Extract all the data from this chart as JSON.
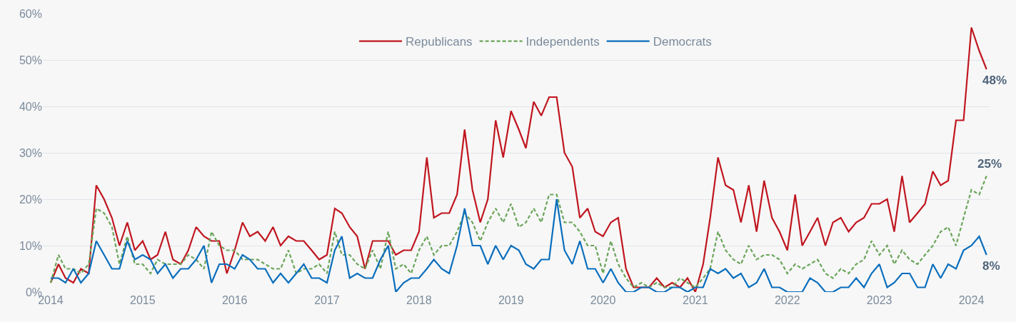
{
  "chart_data": {
    "type": "line",
    "x": [
      "2014-01",
      "2014-02",
      "2014-03",
      "2014-04",
      "2014-05",
      "2014-06",
      "2014-07",
      "2014-08",
      "2014-09",
      "2014-10",
      "2014-11",
      "2014-12",
      "2015-01",
      "2015-02",
      "2015-03",
      "2015-04",
      "2015-05",
      "2015-06",
      "2015-07",
      "2015-08",
      "2015-09",
      "2015-10",
      "2015-11",
      "2015-12",
      "2016-01",
      "2016-02",
      "2016-03",
      "2016-04",
      "2016-05",
      "2016-06",
      "2016-07",
      "2016-08",
      "2016-09",
      "2016-10",
      "2016-11",
      "2016-12",
      "2017-01",
      "2017-02",
      "2017-03",
      "2017-04",
      "2017-05",
      "2017-06",
      "2017-07",
      "2017-08",
      "2017-09",
      "2017-10",
      "2017-11",
      "2017-12",
      "2018-01",
      "2018-02",
      "2018-03",
      "2018-04",
      "2018-05",
      "2018-06",
      "2018-07",
      "2018-08",
      "2018-09",
      "2018-10",
      "2018-11",
      "2018-12",
      "2019-01",
      "2019-02",
      "2019-03",
      "2019-04",
      "2019-05",
      "2019-06",
      "2019-07",
      "2019-08",
      "2019-09",
      "2019-10",
      "2019-11",
      "2019-12",
      "2020-01",
      "2020-02",
      "2020-03",
      "2020-04",
      "2020-05",
      "2020-06",
      "2020-07",
      "2020-08",
      "2020-09",
      "2020-10",
      "2020-11",
      "2020-12",
      "2021-01",
      "2021-02",
      "2021-03",
      "2021-04",
      "2021-05",
      "2021-06",
      "2021-07",
      "2021-08",
      "2021-09",
      "2021-10",
      "2021-11",
      "2021-12",
      "2022-01",
      "2022-02",
      "2022-03",
      "2022-04",
      "2022-05",
      "2022-06",
      "2022-07",
      "2022-08",
      "2022-09",
      "2022-10",
      "2022-11",
      "2022-12",
      "2023-01",
      "2023-02",
      "2023-03",
      "2023-04",
      "2023-05",
      "2023-06",
      "2023-07",
      "2023-08",
      "2023-09",
      "2023-10",
      "2023-11",
      "2023-12",
      "2024-01",
      "2024-02",
      "2024-03"
    ],
    "xlim": [
      "2013-12-01",
      "2024-03-16"
    ],
    "xticks": [
      {
        "value": "2014-01-01",
        "label": "2014"
      },
      {
        "value": "2015-01-01",
        "label": "2015"
      },
      {
        "value": "2016-01-01",
        "label": "2016"
      },
      {
        "value": "2017-01-01",
        "label": "2017"
      },
      {
        "value": "2018-01-01",
        "label": "2018"
      },
      {
        "value": "2019-01-01",
        "label": "2019"
      },
      {
        "value": "2020-01-01",
        "label": "2020"
      },
      {
        "value": "2021-01-01",
        "label": "2021"
      },
      {
        "value": "2022-01-01",
        "label": "2022"
      },
      {
        "value": "2023-01-01",
        "label": "2023"
      },
      {
        "value": "2024-01-01",
        "label": "2024"
      }
    ],
    "ylim": [
      0,
      60
    ],
    "yticks": [
      {
        "value": 0,
        "label": "0%"
      },
      {
        "value": 10,
        "label": "10%"
      },
      {
        "value": 20,
        "label": "20%"
      },
      {
        "value": 30,
        "label": "30%"
      },
      {
        "value": 40,
        "label": "40%"
      },
      {
        "value": 50,
        "label": "50%"
      },
      {
        "value": 60,
        "label": "60%"
      }
    ],
    "grid": "y",
    "legend": "top",
    "series": [
      {
        "name": "Republicans",
        "color": "#c0161f",
        "line_style": "solid",
        "values": [
          2,
          6,
          3,
          2,
          5,
          4,
          23,
          20,
          16,
          10,
          15,
          9,
          11,
          7,
          8,
          13,
          7,
          6,
          9,
          14,
          12,
          11,
          11,
          4,
          9,
          15,
          12,
          13,
          11,
          14,
          10,
          12,
          11,
          11,
          9,
          7,
          8,
          18,
          17,
          14,
          12,
          5,
          11,
          11,
          11,
          8,
          9,
          9,
          13,
          29,
          16,
          17,
          17,
          21,
          35,
          22,
          15,
          20,
          37,
          29,
          39,
          35,
          31,
          41,
          38,
          42,
          42,
          30,
          27,
          16,
          18,
          13,
          12,
          15,
          16,
          5,
          1,
          1,
          1,
          3,
          1,
          2,
          1,
          3,
          0,
          6,
          16,
          29,
          23,
          22,
          15,
          23,
          13,
          24,
          16,
          13,
          9,
          21,
          10,
          13,
          16,
          10,
          15,
          16,
          13,
          15,
          16,
          19,
          19,
          20,
          13,
          25,
          15,
          17,
          19,
          26,
          23,
          24,
          37,
          37,
          57,
          52,
          48
        ],
        "value_labels": [
          null,
          null,
          null,
          null,
          null,
          null,
          null,
          null,
          null,
          null,
          null,
          null,
          null,
          null,
          null,
          null,
          null,
          null,
          null,
          null,
          null,
          null,
          null,
          null,
          null,
          null,
          null,
          null,
          null,
          null,
          null,
          null,
          null,
          null,
          null,
          null,
          null,
          null,
          null,
          null,
          null,
          null,
          null,
          null,
          null,
          null,
          null,
          null,
          null,
          null,
          null,
          null,
          null,
          null,
          null,
          null,
          null,
          null,
          null,
          null,
          null,
          null,
          null,
          null,
          null,
          null,
          null,
          null,
          null,
          null,
          null,
          null,
          null,
          null,
          null,
          null,
          null,
          null,
          null,
          null,
          null,
          null,
          null,
          null,
          null,
          null,
          null,
          null,
          null,
          null,
          null,
          null,
          null,
          null,
          null,
          null,
          null,
          null,
          null,
          null,
          null,
          null,
          null,
          null,
          null,
          null,
          null,
          null,
          null,
          null,
          null,
          null,
          null,
          null,
          null,
          null,
          null,
          null,
          null,
          null,
          null,
          null,
          "48%"
        ]
      },
      {
        "name": "Independents",
        "color": "#6aa55a",
        "line_style": "dashed",
        "values": [
          2,
          8,
          5,
          5,
          4,
          6,
          18,
          17,
          14,
          6,
          12,
          6,
          6,
          4,
          7,
          6,
          6,
          6,
          8,
          7,
          5,
          13,
          10,
          9,
          9,
          7,
          7,
          7,
          6,
          5,
          5,
          9,
          4,
          5,
          5,
          6,
          4,
          13,
          8,
          8,
          6,
          5,
          9,
          5,
          13,
          5,
          6,
          4,
          9,
          12,
          8,
          10,
          10,
          13,
          17,
          15,
          11,
          15,
          18,
          15,
          19,
          14,
          15,
          18,
          15,
          21,
          21,
          15,
          15,
          13,
          10,
          10,
          4,
          11,
          6,
          3,
          1,
          2,
          1,
          2,
          1,
          1,
          3,
          2,
          1,
          3,
          5,
          13,
          9,
          7,
          6,
          10,
          7,
          8,
          8,
          7,
          4,
          6,
          5,
          6,
          7,
          4,
          3,
          5,
          4,
          6,
          7,
          11,
          8,
          10,
          6,
          9,
          7,
          6,
          8,
          10,
          13,
          14,
          10,
          16,
          22,
          21,
          25
        ],
        "value_labels": [
          null,
          null,
          null,
          null,
          null,
          null,
          null,
          null,
          null,
          null,
          null,
          null,
          null,
          null,
          null,
          null,
          null,
          null,
          null,
          null,
          null,
          null,
          null,
          null,
          null,
          null,
          null,
          null,
          null,
          null,
          null,
          null,
          null,
          null,
          null,
          null,
          null,
          null,
          null,
          null,
          null,
          null,
          null,
          null,
          null,
          null,
          null,
          null,
          null,
          null,
          null,
          null,
          null,
          null,
          null,
          null,
          null,
          null,
          null,
          null,
          null,
          null,
          null,
          null,
          null,
          null,
          null,
          null,
          null,
          null,
          null,
          null,
          null,
          null,
          null,
          null,
          null,
          null,
          null,
          null,
          null,
          null,
          null,
          null,
          null,
          null,
          null,
          null,
          null,
          null,
          null,
          null,
          null,
          null,
          null,
          null,
          null,
          null,
          null,
          null,
          null,
          null,
          null,
          null,
          null,
          null,
          null,
          null,
          null,
          null,
          null,
          null,
          null,
          null,
          null,
          null,
          null,
          null,
          null,
          null,
          null,
          null,
          "25%"
        ]
      },
      {
        "name": "Democrats",
        "color": "#0a6ebd",
        "line_style": "solid",
        "values": [
          3,
          3,
          2,
          5,
          2,
          4,
          11,
          8,
          5,
          5,
          11,
          7,
          8,
          7,
          4,
          6,
          3,
          5,
          5,
          7,
          10,
          2,
          6,
          6,
          5,
          8,
          7,
          5,
          5,
          2,
          4,
          2,
          4,
          6,
          3,
          3,
          2,
          9,
          12,
          3,
          4,
          3,
          3,
          7,
          10,
          0,
          2,
          3,
          3,
          5,
          7,
          5,
          4,
          10,
          18,
          10,
          10,
          6,
          10,
          7,
          10,
          9,
          6,
          5,
          7,
          7,
          20,
          9,
          6,
          11,
          5,
          5,
          2,
          5,
          2,
          0,
          0,
          1,
          1,
          0,
          0,
          1,
          1,
          0,
          1,
          1,
          5,
          4,
          5,
          3,
          4,
          1,
          2,
          5,
          1,
          1,
          0,
          0,
          0,
          3,
          2,
          0,
          0,
          1,
          1,
          3,
          1,
          4,
          6,
          1,
          2,
          4,
          4,
          1,
          1,
          6,
          3,
          6,
          5,
          9,
          10,
          12,
          8
        ],
        "value_labels": [
          null,
          null,
          null,
          null,
          null,
          null,
          null,
          null,
          null,
          null,
          null,
          null,
          null,
          null,
          null,
          null,
          null,
          null,
          null,
          null,
          null,
          null,
          null,
          null,
          null,
          null,
          null,
          null,
          null,
          null,
          null,
          null,
          null,
          null,
          null,
          null,
          null,
          null,
          null,
          null,
          null,
          null,
          null,
          null,
          null,
          null,
          null,
          null,
          null,
          null,
          null,
          null,
          null,
          null,
          null,
          null,
          null,
          null,
          null,
          null,
          null,
          null,
          null,
          null,
          null,
          null,
          null,
          null,
          null,
          null,
          null,
          null,
          null,
          null,
          null,
          null,
          null,
          null,
          null,
          null,
          null,
          null,
          null,
          null,
          null,
          null,
          null,
          null,
          null,
          null,
          null,
          null,
          null,
          null,
          null,
          null,
          null,
          null,
          null,
          null,
          null,
          null,
          null,
          null,
          null,
          null,
          null,
          null,
          null,
          null,
          null,
          null,
          null,
          null,
          null,
          null,
          null,
          null,
          null,
          null,
          null,
          null,
          "8%"
        ]
      }
    ]
  }
}
